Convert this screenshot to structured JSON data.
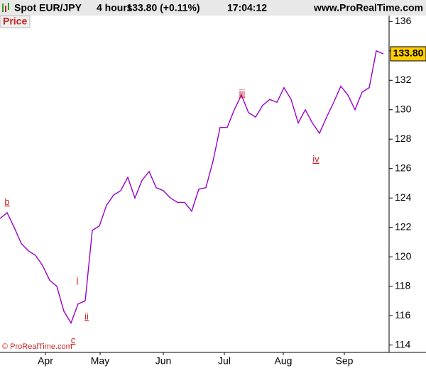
{
  "header": {
    "symbol": "Spot EUR/JPY",
    "period": "4 hours",
    "quote": "133.80 (+0.11%)",
    "time": "17:04:12",
    "site": "www.ProRealTime.com"
  },
  "chart_data": {
    "type": "line",
    "panel_label": "Price",
    "copyright": "© ProRealTime.com",
    "price_label": "133.80",
    "color": "#9900cc",
    "grid": false,
    "values": [
      122.6,
      123.0,
      122.0,
      120.9,
      120.4,
      120.1,
      119.4,
      118.4,
      118.0,
      116.3,
      115.5,
      116.8,
      117.0,
      121.8,
      122.1,
      123.5,
      124.2,
      124.5,
      125.4,
      124.0,
      125.2,
      125.8,
      124.7,
      124.5,
      124.0,
      123.7,
      123.7,
      123.1,
      124.6,
      124.7,
      126.5,
      128.8,
      128.8,
      130.0,
      131.0,
      129.8,
      129.5,
      130.3,
      130.7,
      130.5,
      131.5,
      130.7,
      129.1,
      130.0,
      129.1,
      128.4,
      129.5,
      130.5,
      131.6,
      131.0,
      130.0,
      131.2,
      131.5,
      134.0,
      133.8
    ],
    "xlim": [
      0,
      54.8
    ],
    "xticks": [
      {
        "value": 6.4,
        "label": "Apr"
      },
      {
        "value": 14.1,
        "label": "May"
      },
      {
        "value": 23,
        "label": "Jun"
      },
      {
        "value": 31.6,
        "label": "Jul"
      },
      {
        "value": 39.9,
        "label": "Aug"
      },
      {
        "value": 48.5,
        "label": "Sep"
      }
    ],
    "ylim": [
      113.5,
      136.4
    ],
    "yticks": [
      114,
      116,
      118,
      120,
      122,
      124,
      126,
      128,
      130,
      132,
      134,
      136
    ],
    "annotations": [
      {
        "text": "b",
        "x": 1,
        "y": 123.7
      },
      {
        "text": "c",
        "x": 10.3,
        "y": 114.3
      },
      {
        "text": "i",
        "x": 10.9,
        "y": 118.4
      },
      {
        "text": "ii",
        "x": 12.2,
        "y": 115.9
      },
      {
        "text": "iii",
        "x": 34.1,
        "y": 131.1
      },
      {
        "text": "iv",
        "x": 44.5,
        "y": 126.6
      }
    ]
  }
}
